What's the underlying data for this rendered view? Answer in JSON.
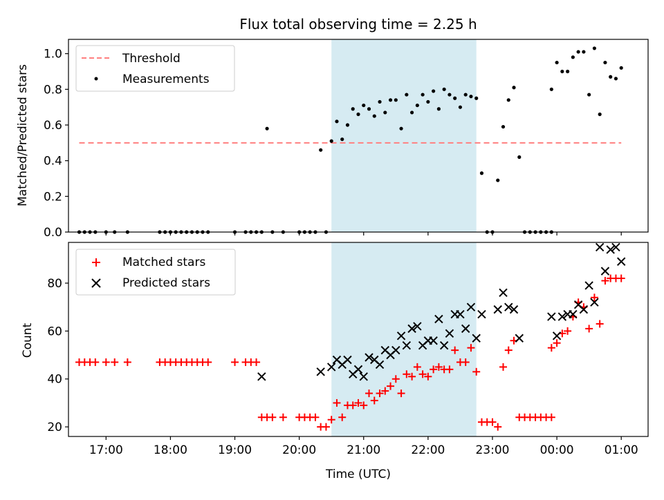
{
  "title": "Flux total observing time = 2.25 h",
  "colors": {
    "threshold": "#ff7f7f",
    "measurement": "#000000",
    "matched": "#ff0000",
    "predicted": "#000000",
    "highlight": "#add8e6"
  },
  "chart_data": [
    {
      "type": "scatter",
      "title": "Flux total observing time = 2.25 h",
      "ylabel": "Matched/Predicted stars",
      "xlabel": "",
      "xlim": [
        "16:25",
        "01:25"
      ],
      "ylim": [
        0,
        1.08
      ],
      "yticks": [
        "0.0",
        "0.2",
        "0.4",
        "0.6",
        "0.8",
        "1.0"
      ],
      "yticks_values": [
        0,
        0.2,
        0.4,
        0.6,
        0.8,
        1.0
      ],
      "highlight_span": [
        "20:30",
        "22:45"
      ],
      "legend": {
        "position": "top-left",
        "entries": [
          "Threshold",
          "Measurements"
        ]
      },
      "threshold": {
        "name": "Threshold",
        "y": 0.5,
        "x": [
          "16:35",
          "01:00"
        ]
      },
      "series": [
        {
          "name": "Measurements",
          "points": [
            [
              "16:35",
              0
            ],
            [
              "16:40",
              0
            ],
            [
              "16:45",
              0
            ],
            [
              "16:50",
              0
            ],
            [
              "17:00",
              0
            ],
            [
              "17:08",
              0
            ],
            [
              "17:20",
              0
            ],
            [
              "17:50",
              0
            ],
            [
              "17:55",
              0
            ],
            [
              "18:00",
              0
            ],
            [
              "18:05",
              0
            ],
            [
              "18:10",
              0
            ],
            [
              "18:15",
              0
            ],
            [
              "18:20",
              0
            ],
            [
              "18:25",
              0
            ],
            [
              "18:30",
              0
            ],
            [
              "18:35",
              0
            ],
            [
              "19:00",
              0
            ],
            [
              "19:10",
              0
            ],
            [
              "19:15",
              0
            ],
            [
              "19:20",
              0
            ],
            [
              "19:25",
              0
            ],
            [
              "19:30",
              0.58
            ],
            [
              "19:35",
              0
            ],
            [
              "19:45",
              0
            ],
            [
              "20:00",
              0
            ],
            [
              "20:05",
              0
            ],
            [
              "20:10",
              0
            ],
            [
              "20:15",
              0
            ],
            [
              "20:20",
              0.46
            ],
            [
              "20:25",
              0
            ],
            [
              "20:30",
              0.51
            ],
            [
              "20:35",
              0.62
            ],
            [
              "20:40",
              0.52
            ],
            [
              "20:45",
              0.6
            ],
            [
              "20:50",
              0.69
            ],
            [
              "20:55",
              0.66
            ],
            [
              "21:00",
              0.71
            ],
            [
              "21:05",
              0.69
            ],
            [
              "21:10",
              0.65
            ],
            [
              "21:15",
              0.73
            ],
            [
              "21:20",
              0.67
            ],
            [
              "21:25",
              0.74
            ],
            [
              "21:30",
              0.74
            ],
            [
              "21:35",
              0.58
            ],
            [
              "21:40",
              0.77
            ],
            [
              "21:45",
              0.67
            ],
            [
              "21:50",
              0.71
            ],
            [
              "21:55",
              0.77
            ],
            [
              "22:00",
              0.73
            ],
            [
              "22:05",
              0.79
            ],
            [
              "22:10",
              0.69
            ],
            [
              "22:15",
              0.8
            ],
            [
              "22:20",
              0.77
            ],
            [
              "22:25",
              0.75
            ],
            [
              "22:30",
              0.7
            ],
            [
              "22:35",
              0.77
            ],
            [
              "22:40",
              0.76
            ],
            [
              "22:45",
              0.75
            ],
            [
              "22:50",
              0.33
            ],
            [
              "22:55",
              0
            ],
            [
              "23:00",
              0
            ],
            [
              "23:05",
              0.29
            ],
            [
              "23:10",
              0.59
            ],
            [
              "23:15",
              0.74
            ],
            [
              "23:20",
              0.81
            ],
            [
              "23:25",
              0.42
            ],
            [
              "23:30",
              0
            ],
            [
              "23:35",
              0
            ],
            [
              "23:40",
              0
            ],
            [
              "23:45",
              0
            ],
            [
              "23:50",
              0
            ],
            [
              "23:55",
              0
            ],
            [
              "23:55",
              0.8
            ],
            [
              "00:00",
              0.95
            ],
            [
              "00:05",
              0.9
            ],
            [
              "00:10",
              0.9
            ],
            [
              "00:15",
              0.98
            ],
            [
              "00:20",
              1.01
            ],
            [
              "00:25",
              1.01
            ],
            [
              "00:30",
              0.77
            ],
            [
              "00:35",
              1.03
            ],
            [
              "00:40",
              0.66
            ],
            [
              "00:45",
              0.95
            ],
            [
              "00:50",
              0.87
            ],
            [
              "00:55",
              0.86
            ],
            [
              "01:00",
              0.92
            ]
          ]
        }
      ]
    },
    {
      "type": "scatter",
      "ylabel": "Count",
      "xlabel": "Time (UTC)",
      "xlim": [
        "16:25",
        "01:25"
      ],
      "ylim": [
        16,
        97
      ],
      "yticks": [
        "20",
        "40",
        "60",
        "80"
      ],
      "yticks_values": [
        20,
        40,
        60,
        80
      ],
      "xticks": [
        "17:00",
        "18:00",
        "19:00",
        "20:00",
        "21:00",
        "22:00",
        "23:00",
        "00:00",
        "01:00"
      ],
      "highlight_span": [
        "20:30",
        "22:45"
      ],
      "legend": {
        "position": "top-left",
        "entries": [
          "Matched stars",
          "Predicted stars"
        ]
      },
      "series": [
        {
          "name": "Matched stars",
          "marker": "+",
          "points": [
            [
              "16:35",
              47
            ],
            [
              "16:40",
              47
            ],
            [
              "16:45",
              47
            ],
            [
              "16:50",
              47
            ],
            [
              "17:00",
              47
            ],
            [
              "17:08",
              47
            ],
            [
              "17:20",
              47
            ],
            [
              "17:50",
              47
            ],
            [
              "17:55",
              47
            ],
            [
              "18:00",
              47
            ],
            [
              "18:05",
              47
            ],
            [
              "18:10",
              47
            ],
            [
              "18:15",
              47
            ],
            [
              "18:20",
              47
            ],
            [
              "18:25",
              47
            ],
            [
              "18:30",
              47
            ],
            [
              "18:35",
              47
            ],
            [
              "19:00",
              47
            ],
            [
              "19:10",
              47
            ],
            [
              "19:15",
              47
            ],
            [
              "19:20",
              47
            ],
            [
              "19:25",
              24
            ],
            [
              "19:30",
              24
            ],
            [
              "19:35",
              24
            ],
            [
              "19:45",
              24
            ],
            [
              "20:00",
              24
            ],
            [
              "20:05",
              24
            ],
            [
              "20:10",
              24
            ],
            [
              "20:15",
              24
            ],
            [
              "20:20",
              20
            ],
            [
              "20:25",
              20
            ],
            [
              "20:30",
              23
            ],
            [
              "20:35",
              30
            ],
            [
              "20:40",
              24
            ],
            [
              "20:45",
              29
            ],
            [
              "20:50",
              29
            ],
            [
              "20:55",
              30
            ],
            [
              "21:00",
              29
            ],
            [
              "21:05",
              34
            ],
            [
              "21:10",
              31
            ],
            [
              "21:15",
              34
            ],
            [
              "21:20",
              35
            ],
            [
              "21:25",
              37
            ],
            [
              "21:30",
              40
            ],
            [
              "21:35",
              34
            ],
            [
              "21:40",
              42
            ],
            [
              "21:45",
              41
            ],
            [
              "21:50",
              45
            ],
            [
              "21:55",
              42
            ],
            [
              "22:00",
              41
            ],
            [
              "22:05",
              44
            ],
            [
              "22:10",
              45
            ],
            [
              "22:15",
              44
            ],
            [
              "22:20",
              44
            ],
            [
              "22:25",
              52
            ],
            [
              "22:30",
              47
            ],
            [
              "22:35",
              47
            ],
            [
              "22:40",
              53
            ],
            [
              "22:45",
              43
            ],
            [
              "22:50",
              22
            ],
            [
              "22:55",
              22
            ],
            [
              "23:00",
              22
            ],
            [
              "23:05",
              20
            ],
            [
              "23:10",
              45
            ],
            [
              "23:15",
              52
            ],
            [
              "23:20",
              56
            ],
            [
              "23:25",
              24
            ],
            [
              "23:30",
              24
            ],
            [
              "23:35",
              24
            ],
            [
              "23:40",
              24
            ],
            [
              "23:45",
              24
            ],
            [
              "23:50",
              24
            ],
            [
              "23:55",
              24
            ],
            [
              "23:55",
              53
            ],
            [
              "00:00",
              55
            ],
            [
              "00:05",
              59
            ],
            [
              "00:10",
              60
            ],
            [
              "00:15",
              66
            ],
            [
              "00:20",
              72
            ],
            [
              "00:25",
              70
            ],
            [
              "00:30",
              61
            ],
            [
              "00:35",
              74
            ],
            [
              "00:40",
              63
            ],
            [
              "00:45",
              81
            ],
            [
              "00:50",
              82
            ],
            [
              "00:55",
              82
            ],
            [
              "01:00",
              82
            ]
          ]
        },
        {
          "name": "Predicted stars",
          "marker": "x",
          "points": [
            [
              "19:25",
              41
            ],
            [
              "20:20",
              43
            ],
            [
              "20:30",
              45
            ],
            [
              "20:35",
              48
            ],
            [
              "20:40",
              46
            ],
            [
              "20:45",
              48
            ],
            [
              "20:50",
              42
            ],
            [
              "20:55",
              44
            ],
            [
              "21:00",
              41
            ],
            [
              "21:05",
              49
            ],
            [
              "21:10",
              48
            ],
            [
              "21:15",
              46
            ],
            [
              "21:20",
              52
            ],
            [
              "21:25",
              50
            ],
            [
              "21:30",
              52
            ],
            [
              "21:35",
              58
            ],
            [
              "21:40",
              54
            ],
            [
              "21:45",
              61
            ],
            [
              "21:50",
              62
            ],
            [
              "21:55",
              54
            ],
            [
              "22:00",
              56
            ],
            [
              "22:05",
              56
            ],
            [
              "22:10",
              65
            ],
            [
              "22:15",
              54
            ],
            [
              "22:20",
              59
            ],
            [
              "22:25",
              67
            ],
            [
              "22:30",
              67
            ],
            [
              "22:35",
              61
            ],
            [
              "22:40",
              70
            ],
            [
              "22:45",
              57
            ],
            [
              "22:50",
              67
            ],
            [
              "23:05",
              69
            ],
            [
              "23:10",
              76
            ],
            [
              "23:15",
              70
            ],
            [
              "23:20",
              69
            ],
            [
              "23:25",
              57
            ],
            [
              "23:55",
              66
            ],
            [
              "00:00",
              58
            ],
            [
              "00:05",
              66
            ],
            [
              "00:10",
              67
            ],
            [
              "00:15",
              67
            ],
            [
              "00:20",
              71
            ],
            [
              "00:25",
              69
            ],
            [
              "00:30",
              79
            ],
            [
              "00:35",
              72
            ],
            [
              "00:40",
              95
            ],
            [
              "00:45",
              85
            ],
            [
              "00:50",
              94
            ],
            [
              "00:55",
              95
            ],
            [
              "01:00",
              89
            ]
          ]
        }
      ]
    }
  ]
}
